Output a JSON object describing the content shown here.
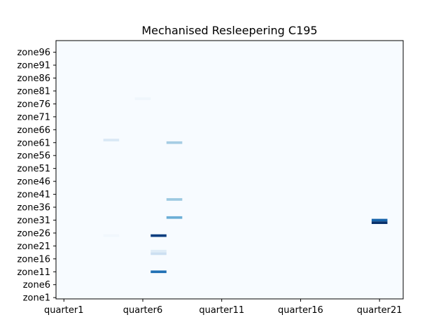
{
  "chart_data": {
    "type": "heatmap",
    "title": "Mechanised Resleepering C195",
    "xlabel": "",
    "ylabel": "",
    "x_categories_count": 22,
    "y_categories_count": 100,
    "x_tick_labels": [
      {
        "index": 0,
        "label": "quarter1"
      },
      {
        "index": 5,
        "label": "quarter6"
      },
      {
        "index": 10,
        "label": "quarter11"
      },
      {
        "index": 15,
        "label": "quarter16"
      },
      {
        "index": 20,
        "label": "quarter21"
      }
    ],
    "y_tick_labels": [
      {
        "index": 0,
        "label": "zone1"
      },
      {
        "index": 5,
        "label": "zone6"
      },
      {
        "index": 10,
        "label": "zone11"
      },
      {
        "index": 15,
        "label": "zone16"
      },
      {
        "index": 20,
        "label": "zone21"
      },
      {
        "index": 25,
        "label": "zone26"
      },
      {
        "index": 30,
        "label": "zone31"
      },
      {
        "index": 35,
        "label": "zone36"
      },
      {
        "index": 40,
        "label": "zone41"
      },
      {
        "index": 45,
        "label": "zone46"
      },
      {
        "index": 50,
        "label": "zone51"
      },
      {
        "index": 55,
        "label": "zone56"
      },
      {
        "index": 60,
        "label": "zone61"
      },
      {
        "index": 65,
        "label": "zone66"
      },
      {
        "index": 70,
        "label": "zone71"
      },
      {
        "index": 75,
        "label": "zone76"
      },
      {
        "index": 80,
        "label": "zone81"
      },
      {
        "index": 85,
        "label": "zone86"
      },
      {
        "index": 90,
        "label": "zone91"
      },
      {
        "index": 95,
        "label": "zone96"
      }
    ],
    "colormap": "Blues",
    "value_range": [
      0,
      1
    ],
    "cells": [
      {
        "x": 5,
        "y": 77,
        "value": 0.04
      },
      {
        "x": 3,
        "y": 61,
        "value": 0.15
      },
      {
        "x": 7,
        "y": 60,
        "value": 0.35
      },
      {
        "x": 7,
        "y": 38,
        "value": 0.38
      },
      {
        "x": 7,
        "y": 31,
        "value": 0.5
      },
      {
        "x": 20,
        "y": 30,
        "value": 0.8
      },
      {
        "x": 20,
        "y": 29,
        "value": 1.0
      },
      {
        "x": 3,
        "y": 24,
        "value": 0.03
      },
      {
        "x": 6,
        "y": 24,
        "value": 0.95
      },
      {
        "x": 6,
        "y": 18,
        "value": 0.12
      },
      {
        "x": 6,
        "y": 17,
        "value": 0.22
      },
      {
        "x": 6,
        "y": 10,
        "value": 0.75
      }
    ]
  }
}
